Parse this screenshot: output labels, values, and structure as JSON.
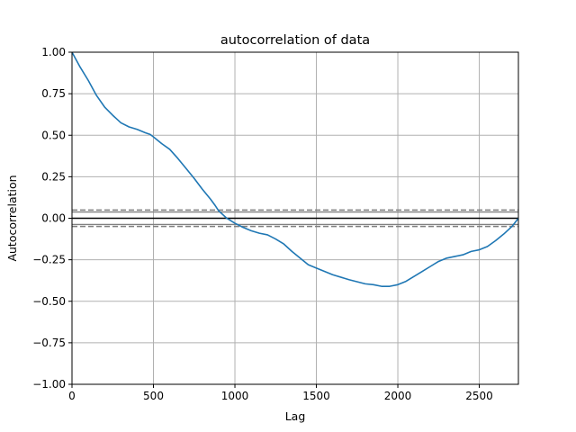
{
  "chart_data": {
    "type": "line",
    "title": "autocorrelation of data",
    "xlabel": "Lag",
    "ylabel": "Autocorrelation",
    "xlim": [
      0,
      2740
    ],
    "ylim": [
      -1.0,
      1.0
    ],
    "grid": true,
    "x_ticks": [
      0,
      500,
      1000,
      1500,
      2000,
      2500
    ],
    "x_tick_labels": [
      "0",
      "500",
      "1000",
      "1500",
      "2000",
      "2500"
    ],
    "y_ticks": [
      1.0,
      0.75,
      0.5,
      0.25,
      0.0,
      -0.25,
      -0.5,
      -0.75,
      -1.0
    ],
    "y_tick_labels": [
      "1.00",
      "0.75",
      "0.50",
      "0.25",
      "0.00",
      "−0.25",
      "−0.50",
      "−0.75",
      "−1.00"
    ],
    "colors": {
      "series": "#1f77b4",
      "zero_line": "#000000",
      "confidence_lines": "#808080",
      "grid": "#b0b0b0"
    },
    "reference_lines": [
      {
        "y": 0.0,
        "style": "solid",
        "color": "#000000"
      },
      {
        "y": 0.0375,
        "style": "solid",
        "color": "#808080"
      },
      {
        "y": -0.0375,
        "style": "solid",
        "color": "#808080"
      },
      {
        "y": 0.0494,
        "style": "dashed",
        "color": "#808080"
      },
      {
        "y": -0.0494,
        "style": "dashed",
        "color": "#808080"
      }
    ],
    "series": [
      {
        "x": [
          0,
          50,
          100,
          150,
          200,
          250,
          300,
          350,
          400,
          450,
          480,
          500,
          550,
          600,
          650,
          700,
          750,
          800,
          850,
          880,
          900,
          950,
          1000,
          1050,
          1100,
          1150,
          1200,
          1250,
          1300,
          1350,
          1400,
          1450,
          1500,
          1600,
          1700,
          1800,
          1850,
          1900,
          1950,
          2000,
          2050,
          2100,
          2150,
          2200,
          2250,
          2300,
          2350,
          2400,
          2450,
          2500,
          2550,
          2600,
          2650,
          2700,
          2740
        ],
        "y": [
          1.0,
          0.91,
          0.83,
          0.74,
          0.67,
          0.62,
          0.575,
          0.55,
          0.535,
          0.515,
          0.505,
          0.49,
          0.45,
          0.415,
          0.36,
          0.3,
          0.24,
          0.175,
          0.115,
          0.075,
          0.045,
          0.0,
          -0.03,
          -0.055,
          -0.075,
          -0.09,
          -0.1,
          -0.125,
          -0.155,
          -0.2,
          -0.24,
          -0.28,
          -0.3,
          -0.34,
          -0.37,
          -0.395,
          -0.4,
          -0.41,
          -0.41,
          -0.4,
          -0.38,
          -0.35,
          -0.32,
          -0.29,
          -0.26,
          -0.24,
          -0.23,
          -0.22,
          -0.2,
          -0.19,
          -0.17,
          -0.135,
          -0.095,
          -0.05,
          0.0
        ]
      }
    ]
  }
}
